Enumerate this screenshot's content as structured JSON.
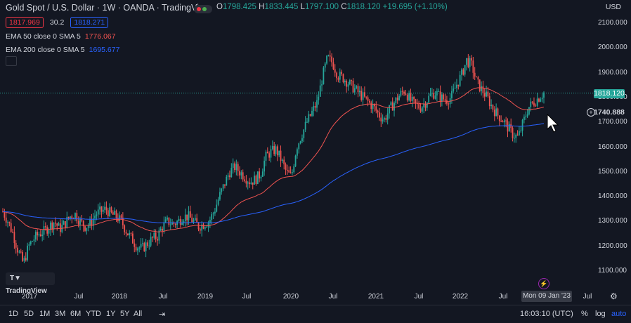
{
  "header": {
    "title": "Gold Spot / U.S. Dollar · 1W · OANDA · TradingView",
    "ohlc": {
      "o_label": "O",
      "o": "1798.425",
      "h_label": "H",
      "h": "1833.445",
      "l_label": "L",
      "l": "1797.100",
      "c_label": "C",
      "c": "1818.120",
      "change": "+19.695 (+1.10%)"
    },
    "sell_price": "1817.969",
    "spread": "30.2",
    "buy_price": "1818.271",
    "currency": "USD"
  },
  "indicators": [
    {
      "label": "EMA 50 close 0 SMA 5",
      "value": "1776.067"
    },
    {
      "label": "EMA 200 close 0 SMA 5",
      "value": "1695.677"
    }
  ],
  "price_axis": {
    "labels": [
      "2100.000",
      "2000.000",
      "1900.000",
      "1800.000",
      "1700.000",
      "1600.000",
      "1500.000",
      "1400.000",
      "1300.000",
      "1200.000",
      "1100.000"
    ],
    "current_price": "1818.120",
    "crosshair_price": "1740.888"
  },
  "time_axis": {
    "labels": [
      "2017",
      "Jul",
      "2018",
      "Jul",
      "2019",
      "Jul",
      "2020",
      "Jul",
      "2021",
      "Jul",
      "2022",
      "Jul",
      "Jul"
    ],
    "crosshair_date": "Mon 09 Jan '23"
  },
  "toolbar": {
    "timeframes": [
      "1D",
      "5D",
      "1M",
      "3M",
      "6M",
      "YTD",
      "1Y",
      "5Y",
      "All"
    ],
    "clock": "16:03:10 (UTC)",
    "percent": "%",
    "log": "log",
    "auto": "auto"
  },
  "logo_text": "TradingView",
  "colors": {
    "up": "#26a69a",
    "down": "#ef5350",
    "ema50": "#ef5350",
    "ema200": "#2962ff",
    "bg": "#131722"
  },
  "chart_data": {
    "type": "candlestick",
    "title": "Gold Spot / U.S. Dollar · 1W · OANDA · TradingView",
    "ylim": [
      1050,
      2150
    ],
    "x_ticks": [
      "2017",
      "Jul",
      "2018",
      "Jul",
      "2019",
      "Jul",
      "2020",
      "Jul",
      "2021",
      "Jul",
      "2022",
      "Jul",
      "Jul"
    ],
    "close_path": [
      1340,
      1300,
      1250,
      1180,
      1130,
      1200,
      1230,
      1250,
      1260,
      1280,
      1300,
      1270,
      1290,
      1320,
      1330,
      1300,
      1280,
      1290,
      1330,
      1340,
      1350,
      1330,
      1320,
      1300,
      1260,
      1230,
      1200,
      1190,
      1210,
      1230,
      1240,
      1280,
      1300,
      1290,
      1300,
      1320,
      1320,
      1300,
      1280,
      1290,
      1300,
      1340,
      1400,
      1450,
      1500,
      1520,
      1500,
      1480,
      1460,
      1470,
      1490,
      1560,
      1580,
      1590,
      1550,
      1500,
      1480,
      1600,
      1650,
      1700,
      1740,
      1780,
      1880,
      1960,
      1940,
      1890,
      1880,
      1860,
      1840,
      1820,
      1800,
      1780,
      1760,
      1730,
      1710,
      1750,
      1780,
      1810,
      1830,
      1790,
      1770,
      1760,
      1780,
      1810,
      1820,
      1800,
      1790,
      1800,
      1850,
      1890,
      1950,
      1930,
      1860,
      1830,
      1800,
      1760,
      1730,
      1710,
      1680,
      1650,
      1640,
      1700,
      1760,
      1780,
      1800,
      1820
    ],
    "series": [
      {
        "name": "EMA 50 close 0 SMA 5",
        "last": 1776.067
      },
      {
        "name": "EMA 200 close 0 SMA 5",
        "last": 1695.677
      }
    ]
  }
}
